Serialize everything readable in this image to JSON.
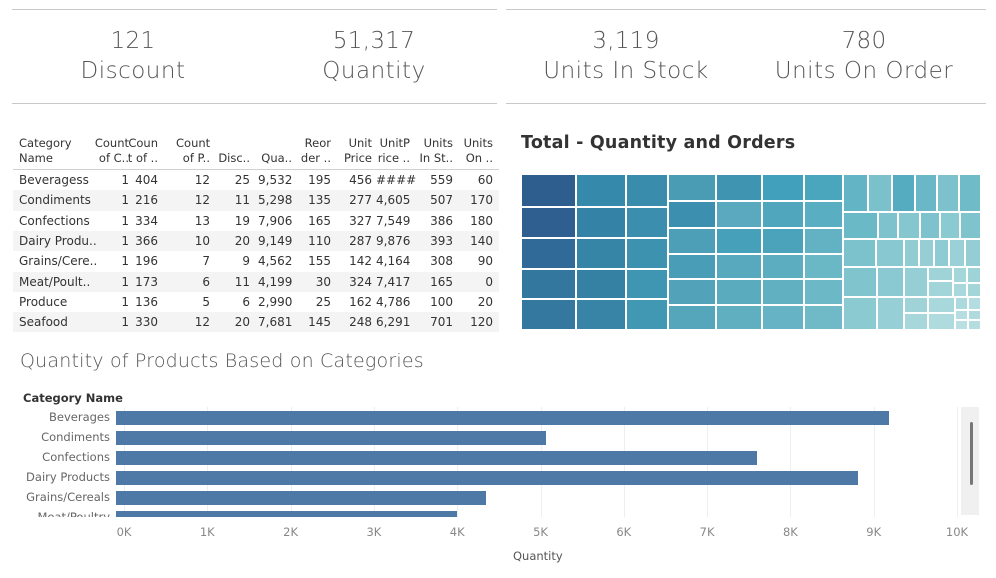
{
  "kpis": {
    "discount": {
      "value": "121",
      "label": "Discount"
    },
    "quantity": {
      "value": "51,317",
      "label": "Quantity"
    },
    "units_in_stock": {
      "value": "3,119",
      "label": "Units In Stock"
    },
    "units_on_order": {
      "value": "780",
      "label": "Units On Order"
    }
  },
  "table": {
    "headers": [
      [
        "Category",
        "Name"
      ],
      [
        "Count",
        "of C.."
      ],
      [
        "Coun",
        "t of .."
      ],
      [
        "Count",
        "of P.."
      ],
      [
        "",
        "Disc.."
      ],
      [
        "",
        "Qua.."
      ],
      [
        "Reor",
        "der .."
      ],
      [
        "Unit",
        "Price"
      ],
      [
        "UnitP",
        "rice .."
      ],
      [
        "Units",
        "In St.."
      ],
      [
        "Units",
        "On .."
      ]
    ],
    "rows": [
      [
        "Beveragess",
        "1",
        "404",
        "12",
        "25",
        "9,532",
        "195",
        "456",
        "####",
        "559",
        "60"
      ],
      [
        "Condiments",
        "1",
        "216",
        "12",
        "11",
        "5,298",
        "135",
        "277",
        "4,605",
        "507",
        "170"
      ],
      [
        "Confections",
        "1",
        "334",
        "13",
        "19",
        "7,906",
        "165",
        "327",
        "7,549",
        "386",
        "180"
      ],
      [
        "Dairy Produ..",
        "1",
        "366",
        "10",
        "20",
        "9,149",
        "110",
        "287",
        "9,876",
        "393",
        "140"
      ],
      [
        "Grains/Cere..",
        "1",
        "196",
        "7",
        "9",
        "4,562",
        "155",
        "142",
        "4,164",
        "308",
        "90"
      ],
      [
        "Meat/Poult..",
        "1",
        "173",
        "6",
        "11",
        "4,199",
        "30",
        "324",
        "7,417",
        "165",
        "0"
      ],
      [
        "Produce",
        "1",
        "136",
        "5",
        "6",
        "2,990",
        "25",
        "162",
        "4,786",
        "100",
        "20"
      ],
      [
        "Seafood",
        "1",
        "330",
        "12",
        "20",
        "7,681",
        "145",
        "248",
        "6,291",
        "701",
        "120"
      ]
    ]
  },
  "treemap": {
    "title": "Total - Quantity and Orders"
  },
  "bar_chart": {
    "title": "Quantity of Products Based on Categories",
    "category_header": "Category Name",
    "x_title": "Quantity",
    "x_ticks": [
      "0K",
      "1K",
      "2K",
      "3K",
      "4K",
      "5K",
      "6K",
      "7K",
      "8K",
      "9K",
      "10K"
    ]
  },
  "chart_data": {
    "type": "bar",
    "title": "Quantity of Products Based on Categories",
    "xlabel": "Quantity",
    "ylabel": "Category Name",
    "xlim": [
      0,
      10000
    ],
    "categories": [
      "Beverages",
      "Condiments",
      "Confections",
      "Dairy Products",
      "Grains/Cereals",
      "Meat/Poultry"
    ],
    "values": [
      9532,
      5298,
      7906,
      9149,
      4562,
      4199
    ]
  },
  "colors": {
    "bar": "#4e79a7",
    "treemap_dark": "#2c5b8c",
    "treemap_light": "#a9ddd9"
  }
}
